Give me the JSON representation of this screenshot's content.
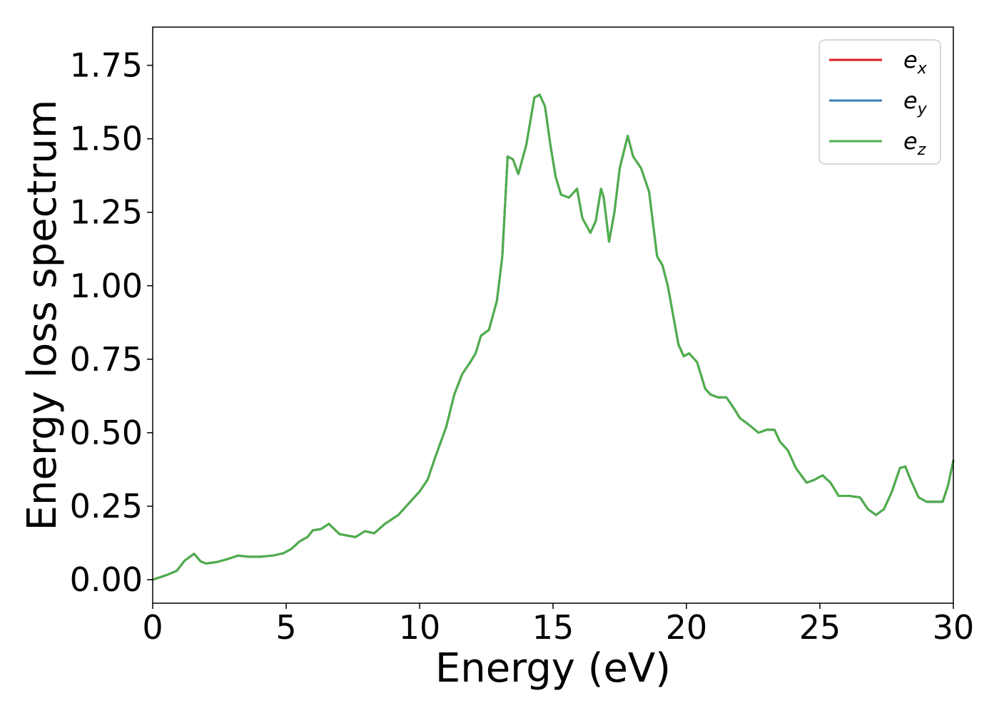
{
  "chart_data": {
    "type": "line",
    "xlabel": "Energy (eV)",
    "ylabel": "Energy loss spectrum",
    "xlim": [
      0,
      30
    ],
    "ylim": [
      -0.08,
      1.88
    ],
    "xticks": [
      0,
      5,
      10,
      15,
      20,
      25,
      30
    ],
    "xtick_labels": [
      "0",
      "5",
      "10",
      "15",
      "20",
      "25",
      "30"
    ],
    "yticks": [
      0.0,
      0.25,
      0.5,
      0.75,
      1.0,
      1.25,
      1.5,
      1.75
    ],
    "ytick_labels": [
      "0.00",
      "0.25",
      "0.50",
      "0.75",
      "1.00",
      "1.25",
      "1.50",
      "1.75"
    ],
    "grid": false,
    "legend_position": "top-right",
    "x": [
      0,
      0.5,
      0.9,
      1.2,
      1.55,
      1.8,
      2.0,
      2.4,
      2.8,
      3.2,
      3.6,
      4.0,
      4.5,
      4.9,
      5.2,
      5.5,
      5.8,
      6.0,
      6.3,
      6.6,
      7.0,
      7.6,
      7.95,
      8.3,
      8.7,
      9.2,
      9.6,
      10.0,
      10.3,
      10.6,
      11.0,
      11.3,
      11.6,
      11.9,
      12.1,
      12.3,
      12.6,
      12.9,
      13.1,
      13.3,
      13.5,
      13.7,
      14.0,
      14.3,
      14.5,
      14.7,
      14.9,
      15.1,
      15.3,
      15.6,
      15.9,
      16.1,
      16.4,
      16.6,
      16.8,
      16.9,
      17.1,
      17.3,
      17.5,
      17.8,
      18.0,
      18.3,
      18.6,
      18.9,
      19.1,
      19.3,
      19.5,
      19.7,
      19.9,
      20.1,
      20.4,
      20.7,
      20.9,
      21.2,
      21.5,
      21.8,
      22.0,
      22.3,
      22.7,
      23.0,
      23.3,
      23.5,
      23.8,
      24.1,
      24.5,
      24.8,
      25.1,
      25.4,
      25.7,
      26.1,
      26.5,
      26.8,
      27.1,
      27.4,
      27.7,
      28.0,
      28.2,
      28.4,
      28.7,
      29.0,
      29.3,
      29.6,
      29.8,
      30.0
    ],
    "series": [
      {
        "name": "e_x",
        "label_base": "e",
        "label_sub": "x",
        "color": "#e41a1c",
        "values": [
          0.0,
          0.015,
          0.03,
          0.065,
          0.088,
          0.062,
          0.055,
          0.06,
          0.07,
          0.082,
          0.078,
          0.078,
          0.082,
          0.09,
          0.105,
          0.13,
          0.145,
          0.168,
          0.172,
          0.19,
          0.155,
          0.145,
          0.165,
          0.158,
          0.19,
          0.22,
          0.26,
          0.3,
          0.34,
          0.42,
          0.52,
          0.63,
          0.7,
          0.74,
          0.77,
          0.83,
          0.85,
          0.95,
          1.1,
          1.44,
          1.43,
          1.38,
          1.48,
          1.64,
          1.65,
          1.61,
          1.48,
          1.37,
          1.31,
          1.3,
          1.33,
          1.23,
          1.18,
          1.22,
          1.33,
          1.3,
          1.15,
          1.25,
          1.4,
          1.51,
          1.44,
          1.4,
          1.32,
          1.1,
          1.07,
          1.0,
          0.9,
          0.8,
          0.76,
          0.77,
          0.74,
          0.65,
          0.63,
          0.62,
          0.62,
          0.58,
          0.55,
          0.53,
          0.5,
          0.51,
          0.51,
          0.47,
          0.44,
          0.38,
          0.33,
          0.34,
          0.355,
          0.33,
          0.285,
          0.285,
          0.28,
          0.24,
          0.22,
          0.24,
          0.3,
          0.38,
          0.385,
          0.34,
          0.28,
          0.265,
          0.265,
          0.265,
          0.32,
          0.405
        ]
      },
      {
        "name": "e_y",
        "label_base": "e",
        "label_sub": "y",
        "color": "#377eb8",
        "values": [
          0.0,
          0.015,
          0.03,
          0.065,
          0.088,
          0.062,
          0.055,
          0.06,
          0.07,
          0.082,
          0.078,
          0.078,
          0.082,
          0.09,
          0.105,
          0.13,
          0.145,
          0.168,
          0.172,
          0.19,
          0.155,
          0.145,
          0.165,
          0.158,
          0.19,
          0.22,
          0.26,
          0.3,
          0.34,
          0.42,
          0.52,
          0.63,
          0.7,
          0.74,
          0.77,
          0.83,
          0.85,
          0.95,
          1.1,
          1.44,
          1.43,
          1.38,
          1.48,
          1.64,
          1.65,
          1.61,
          1.48,
          1.37,
          1.31,
          1.3,
          1.33,
          1.23,
          1.18,
          1.22,
          1.33,
          1.3,
          1.15,
          1.25,
          1.4,
          1.51,
          1.44,
          1.4,
          1.32,
          1.1,
          1.07,
          1.0,
          0.9,
          0.8,
          0.76,
          0.77,
          0.74,
          0.65,
          0.63,
          0.62,
          0.62,
          0.58,
          0.55,
          0.53,
          0.5,
          0.51,
          0.51,
          0.47,
          0.44,
          0.38,
          0.33,
          0.34,
          0.355,
          0.33,
          0.285,
          0.285,
          0.28,
          0.24,
          0.22,
          0.24,
          0.3,
          0.38,
          0.385,
          0.34,
          0.28,
          0.265,
          0.265,
          0.265,
          0.32,
          0.405
        ]
      },
      {
        "name": "e_z",
        "label_base": "e",
        "label_sub": "z",
        "color": "#4daf4a",
        "values": [
          0.0,
          0.015,
          0.03,
          0.065,
          0.088,
          0.062,
          0.055,
          0.06,
          0.07,
          0.082,
          0.078,
          0.078,
          0.082,
          0.09,
          0.105,
          0.13,
          0.145,
          0.168,
          0.172,
          0.19,
          0.155,
          0.145,
          0.165,
          0.158,
          0.19,
          0.22,
          0.26,
          0.3,
          0.34,
          0.42,
          0.52,
          0.63,
          0.7,
          0.74,
          0.77,
          0.83,
          0.85,
          0.95,
          1.1,
          1.44,
          1.43,
          1.38,
          1.48,
          1.64,
          1.65,
          1.61,
          1.48,
          1.37,
          1.31,
          1.3,
          1.33,
          1.23,
          1.18,
          1.22,
          1.33,
          1.3,
          1.15,
          1.25,
          1.4,
          1.51,
          1.44,
          1.4,
          1.32,
          1.1,
          1.07,
          1.0,
          0.9,
          0.8,
          0.76,
          0.77,
          0.74,
          0.65,
          0.63,
          0.62,
          0.62,
          0.58,
          0.55,
          0.53,
          0.5,
          0.51,
          0.51,
          0.47,
          0.44,
          0.38,
          0.33,
          0.34,
          0.355,
          0.33,
          0.285,
          0.285,
          0.28,
          0.24,
          0.22,
          0.24,
          0.3,
          0.38,
          0.385,
          0.34,
          0.28,
          0.265,
          0.265,
          0.265,
          0.32,
          0.405
        ]
      }
    ]
  }
}
